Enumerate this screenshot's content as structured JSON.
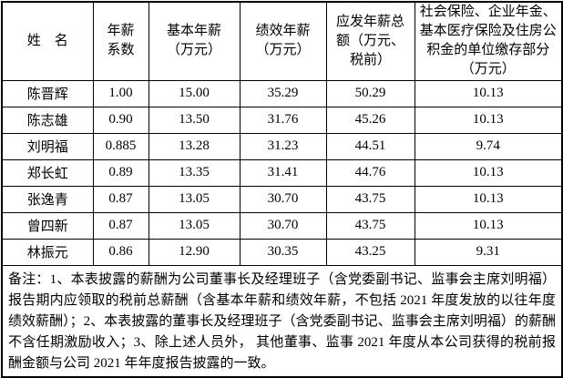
{
  "table": {
    "headers": {
      "name": "姓　名",
      "coefficient": "年薪\n系数",
      "base": "基本年薪\n（万元）",
      "performance": "绩效年薪\n（万元）",
      "total": "应发年薪总\n额（万元、\n税前）",
      "insurance": "社会保险、企业年金、\n基本医疗保险及住房公\n积金的单位缴存部分\n（万元）"
    },
    "rows": [
      {
        "name": "陈晋辉",
        "coefficient": "1.00",
        "base": "15.00",
        "performance": "35.29",
        "total": "50.29",
        "insurance": "10.13"
      },
      {
        "name": "陈志雄",
        "coefficient": "0.90",
        "base": "13.50",
        "performance": "31.76",
        "total": "45.26",
        "insurance": "10.13"
      },
      {
        "name": "刘明福",
        "coefficient": "0.885",
        "base": "13.28",
        "performance": "31.23",
        "total": "44.51",
        "insurance": "9.74"
      },
      {
        "name": "郑长虹",
        "coefficient": "0.89",
        "base": "13.35",
        "performance": "31.41",
        "total": "44.76",
        "insurance": "10.13"
      },
      {
        "name": "张逸青",
        "coefficient": "0.87",
        "base": "13.05",
        "performance": "30.70",
        "total": "43.75",
        "insurance": "10.13"
      },
      {
        "name": "曾四新",
        "coefficient": "0.87",
        "base": "13.05",
        "performance": "30.70",
        "total": "43.75",
        "insurance": "10.13"
      },
      {
        "name": "林振元",
        "coefficient": "0.86",
        "base": "12.90",
        "performance": "30.35",
        "total": "43.25",
        "insurance": "9.31"
      }
    ]
  },
  "note": "备注：1、本表披露的薪酬为公司董事长及经理班子（含党委副书记、监事会主席刘明福）报告期内应领取的税前总薪酬（含基本年薪和绩效年薪，不包括 2021 年度发放的以往年度绩效薪酬）；2、本表披露的董事长及经理班子（含党委副书记、监事会主席刘明福）的薪酬不含任期激励收入；3、除上述人员外， 其他董事、监事 2021 年度从本公司获得的税前报酬金额与公司 2021 年年度报告披露的一致。",
  "colors": {
    "border": "#000000",
    "background": "#ffffff",
    "text": "#000000"
  }
}
